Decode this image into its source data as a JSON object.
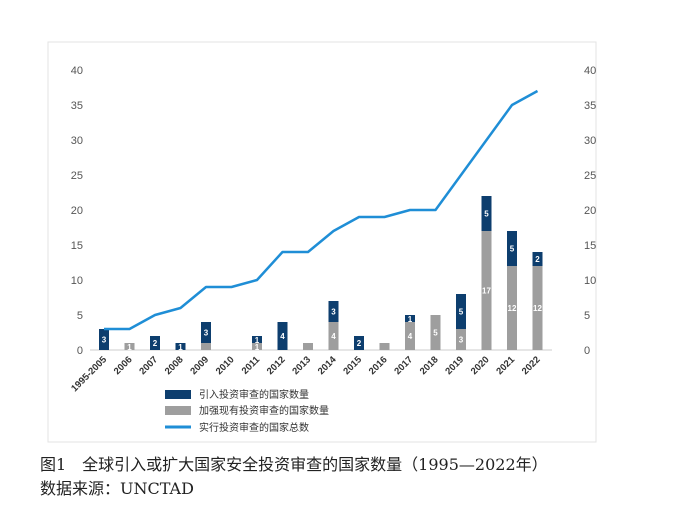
{
  "chart_data": {
    "type": "bar",
    "categories": [
      "1995-2005",
      "2006",
      "2007",
      "2008",
      "2009",
      "2010",
      "2011",
      "2012",
      "2013",
      "2014",
      "2015",
      "2016",
      "2017",
      "2018",
      "2019",
      "2020",
      "2021",
      "2022"
    ],
    "series": [
      {
        "name": "加强现有投资审查的国家数量",
        "type": "bar",
        "stack": "a",
        "color": "#9e9e9e",
        "values": [
          0,
          1,
          0,
          0,
          1,
          0,
          1,
          0,
          1,
          4,
          0,
          1,
          4,
          5,
          3,
          17,
          12,
          12
        ],
        "labels": [
          "",
          "1",
          "",
          "",
          "",
          "",
          "1",
          "",
          "",
          "4",
          "",
          "",
          "4",
          "5",
          "3",
          "17",
          "12",
          "12"
        ]
      },
      {
        "name": "引入投资审查的国家数量",
        "type": "bar",
        "stack": "a",
        "color": "#0d3e6e",
        "values": [
          3,
          0,
          2,
          1,
          3,
          0,
          1,
          4,
          0,
          3,
          2,
          0,
          1,
          0,
          5,
          5,
          5,
          2
        ],
        "labels": [
          "3",
          "",
          "2",
          "1",
          "3",
          "",
          "1",
          "4",
          "",
          "3",
          "2",
          "",
          "1",
          "",
          "5",
          "5",
          "5",
          "2"
        ]
      },
      {
        "name": "实行投资审查的国家总数",
        "type": "line",
        "color": "#1f8ed6",
        "values": [
          3,
          3,
          5,
          6,
          9,
          9,
          10,
          14,
          14,
          17,
          19,
          19,
          20,
          20,
          25,
          30,
          35,
          37
        ]
      }
    ],
    "ylim": [
      0,
      40
    ],
    "yticks": [
      "0",
      "5",
      "10",
      "15",
      "20",
      "25",
      "30",
      "35",
      "40"
    ],
    "secondary_yticks": [
      "0",
      "5",
      "10",
      "15",
      "20",
      "25",
      "30",
      "35",
      "40"
    ],
    "grid": false,
    "legend_position": "bottom"
  },
  "caption": {
    "figure": "图1　全球引入或扩大国家安全投资审查的国家数量（1995—2022年）",
    "source": "数据来源：UNCTAD"
  },
  "colors": {
    "introduce": "#0d3e6e",
    "strengthen": "#9e9e9e",
    "line": "#1f8ed6"
  }
}
